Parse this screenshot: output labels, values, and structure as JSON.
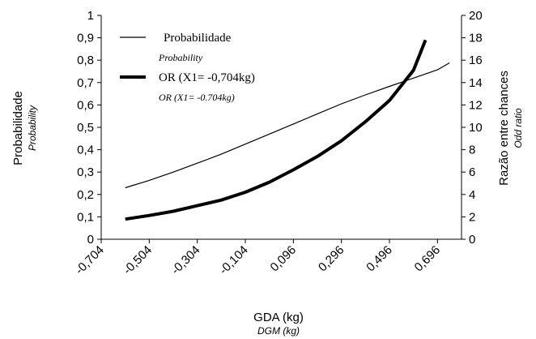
{
  "chart_data": {
    "type": "line",
    "x_ticks": [
      "-0,704",
      "-0,504",
      "-0,304",
      "-0,104",
      "0,096",
      "0,296",
      "0,496",
      "0,696"
    ],
    "x_range": [
      -0.704,
      0.796
    ],
    "xlabel": "GDA (kg)",
    "xlabel_sub": "DGM (kg)",
    "ylabel_left": "Probabilidade",
    "ylabel_left_sub": "Probability",
    "ylabel_right": "Razão entre chances",
    "ylabel_right_sub": "Odd ratio",
    "y_left_range": [
      0,
      1
    ],
    "y_left_ticks": [
      "0",
      "0,1",
      "0,2",
      "0,3",
      "0,4",
      "0,5",
      "0,6",
      "0,7",
      "0,8",
      "0,9",
      "1"
    ],
    "y_right_range": [
      0,
      20
    ],
    "y_right_ticks": [
      "0",
      "2",
      "4",
      "6",
      "8",
      "10",
      "12",
      "14",
      "16",
      "18",
      "20"
    ],
    "grid": false,
    "legend_position": "top-left",
    "series": [
      {
        "name": "Probabilidade",
        "name_sub": "Probability",
        "axis": "left",
        "style": "thin",
        "x": [
          -0.604,
          -0.504,
          -0.404,
          -0.304,
          -0.204,
          -0.104,
          -0.004,
          0.096,
          0.196,
          0.296,
          0.396,
          0.496,
          0.596,
          0.696,
          0.746
        ],
        "y": [
          0.23,
          0.263,
          0.3,
          0.34,
          0.38,
          0.425,
          0.47,
          0.515,
          0.56,
          0.605,
          0.645,
          0.683,
          0.72,
          0.757,
          0.788
        ]
      },
      {
        "name": "OR (X1= -0,704kg)",
        "name_sub": "OR (X1= -0.704kg)",
        "axis": "right",
        "style": "thick",
        "x": [
          -0.604,
          -0.504,
          -0.404,
          -0.304,
          -0.204,
          -0.104,
          -0.004,
          0.096,
          0.196,
          0.296,
          0.396,
          0.496,
          0.596,
          0.646
        ],
        "y": [
          1.8,
          2.12,
          2.5,
          3.0,
          3.5,
          4.2,
          5.1,
          6.2,
          7.4,
          8.8,
          10.5,
          12.4,
          15.1,
          17.8
        ]
      }
    ]
  }
}
